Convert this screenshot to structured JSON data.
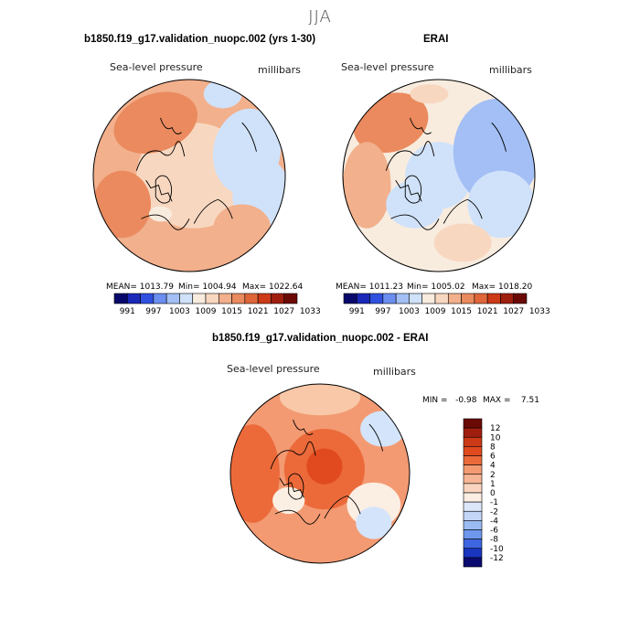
{
  "page_title": "JJA",
  "chart_data": [
    {
      "type": "heatmap",
      "panel": "model",
      "title": "b1850.f19_g17.validation_nuopc.002 (yrs 1-30)",
      "variable": "Sea-level pressure",
      "units": "millibars",
      "stats": {
        "mean": "MEAN= 1013.79",
        "min": "Min= 1004.94",
        "max": "Max= 1022.64"
      },
      "colorbar_ticks": [
        "991",
        "997",
        "1003",
        "1009",
        "1015",
        "1021",
        "1027",
        "1033"
      ]
    },
    {
      "type": "heatmap",
      "panel": "obs",
      "title": "ERAI",
      "variable": "Sea-level pressure",
      "units": "millibars",
      "stats": {
        "mean": "MEAN= 1011.23",
        "min": "Min= 1005.02",
        "max": "Max= 1018.20"
      },
      "colorbar_ticks": [
        "991",
        "997",
        "1003",
        "1009",
        "1015",
        "1021",
        "1027",
        "1033"
      ]
    },
    {
      "type": "heatmap",
      "panel": "difference",
      "title": "b1850.f19_g17.validation_nuopc.002 - ERAI",
      "variable": "Sea-level pressure",
      "units": "millibars",
      "stats": {
        "min": "MIN =   -0.98",
        "max": "MAX =    7.51"
      },
      "colorbar_ticks": [
        "12",
        "10",
        "8",
        "6",
        "4",
        "2",
        "1",
        "0",
        "-1",
        "-2",
        "-4",
        "-6",
        "-8",
        "-10",
        "-12"
      ]
    }
  ],
  "colors": {
    "scale": [
      "#08086b",
      "#1a28b8",
      "#3050e0",
      "#6b8ef0",
      "#a3bff5",
      "#d0e2fa",
      "#f8ecdf",
      "#f8d7c0",
      "#f2b08c",
      "#ea8a5e",
      "#e0663a",
      "#cc3a17",
      "#a01e0e",
      "#6b0a05"
    ]
  }
}
